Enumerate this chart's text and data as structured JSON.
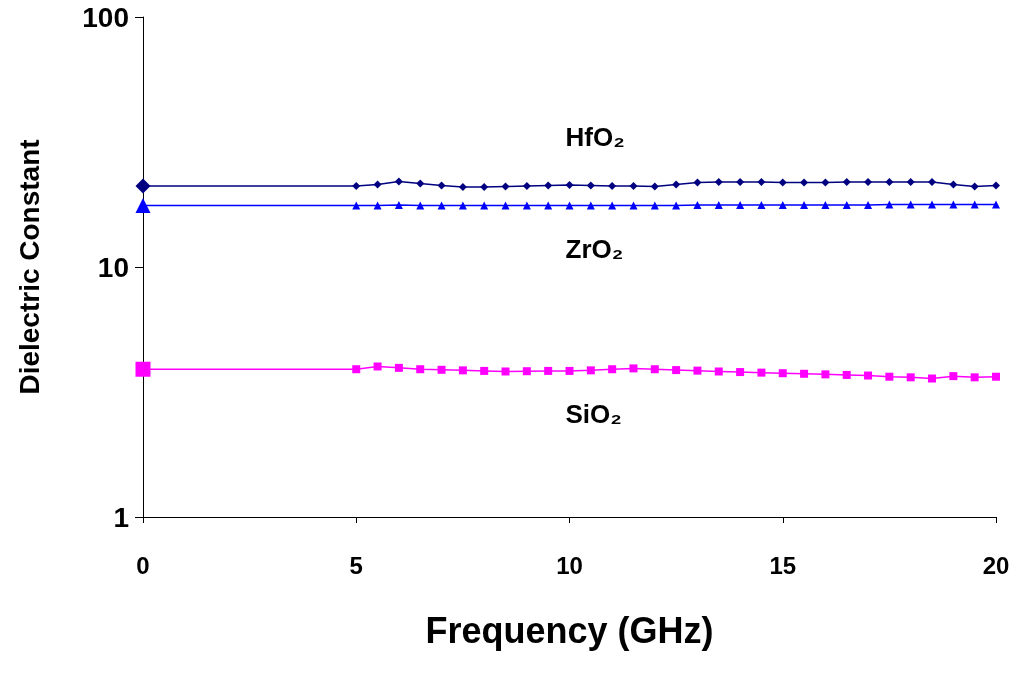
{
  "chart_data": {
    "type": "line",
    "xlabel": "Frequency (GHz)",
    "ylabel": "Dielectric Constant",
    "log": "y",
    "xlim": [
      0,
      20
    ],
    "xticks": [
      0,
      5,
      10,
      15,
      20
    ],
    "ylim": [
      1,
      100
    ],
    "yticks": [
      1,
      10,
      100
    ],
    "grid": false,
    "legend": false,
    "x": [
      0,
      5,
      5.5,
      6,
      6.5,
      7,
      7.5,
      8,
      8.5,
      9,
      9.5,
      10,
      10.5,
      11,
      11.5,
      12,
      12.5,
      13,
      13.5,
      14,
      14.5,
      15,
      15.5,
      16,
      16.5,
      17,
      17.5,
      18,
      18.5,
      19,
      19.5,
      20
    ],
    "series": [
      {
        "name": "HfO₂",
        "color": "#000080",
        "marker": "diamond",
        "values": [
          21.1,
          21.1,
          21.4,
          22.0,
          21.6,
          21.2,
          20.9,
          20.9,
          21.0,
          21.1,
          21.2,
          21.3,
          21.2,
          21.1,
          21.1,
          21.0,
          21.4,
          21.8,
          21.9,
          21.9,
          21.9,
          21.8,
          21.8,
          21.8,
          21.9,
          21.9,
          21.9,
          21.9,
          21.9,
          21.4,
          21.0,
          21.2
        ]
      },
      {
        "name": "ZrO₂",
        "color": "#0000ff",
        "marker": "triangle",
        "values": [
          17.6,
          17.6,
          17.6,
          17.7,
          17.6,
          17.6,
          17.6,
          17.6,
          17.6,
          17.6,
          17.6,
          17.6,
          17.6,
          17.6,
          17.6,
          17.6,
          17.6,
          17.7,
          17.7,
          17.7,
          17.7,
          17.7,
          17.7,
          17.7,
          17.7,
          17.7,
          17.8,
          17.8,
          17.8,
          17.8,
          17.8,
          17.8
        ]
      },
      {
        "name": "SiO₂",
        "color": "#ff00ff",
        "marker": "square",
        "values": [
          3.9,
          3.9,
          4.0,
          3.95,
          3.9,
          3.88,
          3.86,
          3.84,
          3.82,
          3.83,
          3.84,
          3.84,
          3.86,
          3.9,
          3.93,
          3.9,
          3.87,
          3.85,
          3.82,
          3.8,
          3.78,
          3.76,
          3.74,
          3.72,
          3.7,
          3.68,
          3.64,
          3.62,
          3.58,
          3.66,
          3.62,
          3.64
        ]
      }
    ]
  }
}
